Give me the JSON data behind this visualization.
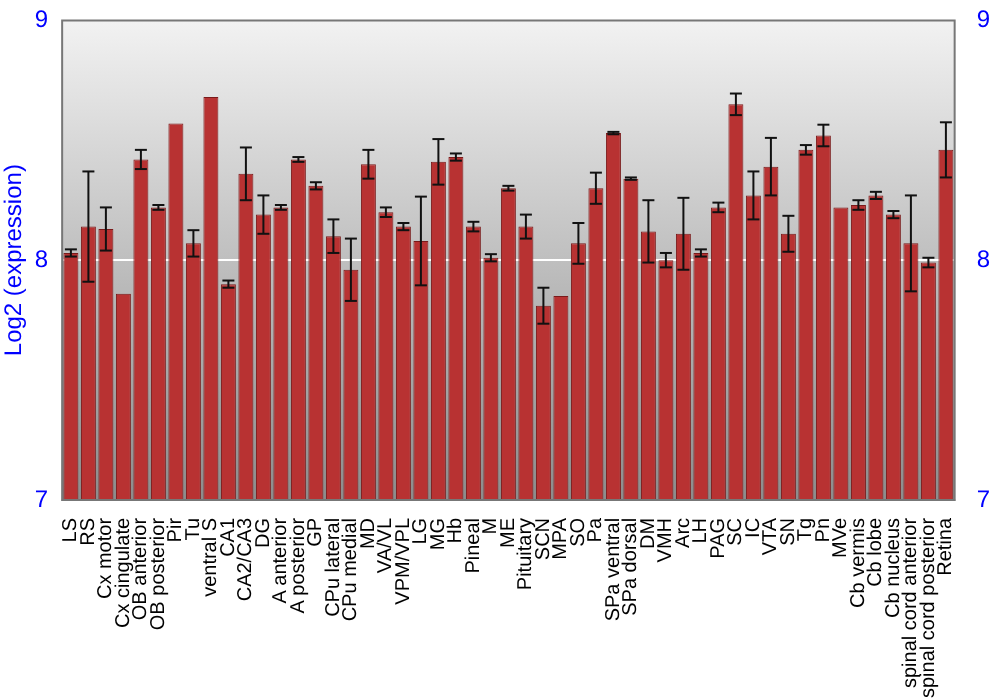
{
  "chart_data": {
    "type": "bar",
    "ylabel": "Log2 (expression)",
    "categories": [
      "LS",
      "RS",
      "Cx motor",
      "Cx cingulate",
      "OB anterior",
      "OB posterior",
      "Pir",
      "Tu",
      "ventral S",
      "CA1",
      "CA2/CA3",
      "DG",
      "A anterior",
      "A posterior",
      "GP",
      "CPu lateral",
      "CPu medial",
      "MD",
      "VA/VL",
      "VPM/VPL",
      "LG",
      "MG",
      "Hb",
      "Pineal",
      "M",
      "ME",
      "Pituitary",
      "SCN",
      "MPA",
      "SO",
      "Pa",
      "SPa ventral",
      "SPa dorsal",
      "DM",
      "VMH",
      "Arc",
      "LH",
      "PAG",
      "SC",
      "IC",
      "VTA",
      "SN",
      "Tg",
      "Pn",
      "MVe",
      "Cb vermis",
      "Cb lobe",
      "Cb nucleus",
      "spinal cord anterior",
      "spinal cord posterior",
      "Retina"
    ],
    "values": [
      8.03,
      8.14,
      8.13,
      7.86,
      8.42,
      8.22,
      8.57,
      8.07,
      8.68,
      7.9,
      8.36,
      8.19,
      8.22,
      8.42,
      8.31,
      8.1,
      7.96,
      8.4,
      8.2,
      8.14,
      8.08,
      8.41,
      8.43,
      8.14,
      8.01,
      8.3,
      8.14,
      7.81,
      7.85,
      8.07,
      8.3,
      8.53,
      8.34,
      8.12,
      8.0,
      8.11,
      8.03,
      8.22,
      8.65,
      8.27,
      8.39,
      8.11,
      8.46,
      8.52,
      8.22,
      8.23,
      8.27,
      8.19,
      8.07,
      7.99,
      8.46
    ],
    "errors": [
      0.015,
      0.23,
      0.09,
      null,
      0.04,
      0.01,
      null,
      0.055,
      null,
      0.015,
      0.11,
      0.08,
      0.01,
      0.01,
      0.015,
      0.07,
      0.13,
      0.06,
      0.02,
      0.015,
      0.185,
      0.095,
      0.015,
      0.02,
      0.015,
      0.01,
      0.05,
      0.075,
      null,
      0.085,
      0.065,
      0.005,
      0.005,
      0.13,
      0.03,
      0.15,
      0.015,
      0.02,
      0.045,
      0.1,
      0.12,
      0.075,
      0.02,
      0.045,
      null,
      0.02,
      0.015,
      0.015,
      0.2,
      0.02,
      0.115
    ],
    "color": "#b83232",
    "ylim": [
      7,
      9
    ],
    "yticks": [
      7,
      8,
      9
    ],
    "y2lim": [
      7,
      9
    ],
    "y2ticks": [
      7,
      8,
      9
    ],
    "grid": "y"
  }
}
